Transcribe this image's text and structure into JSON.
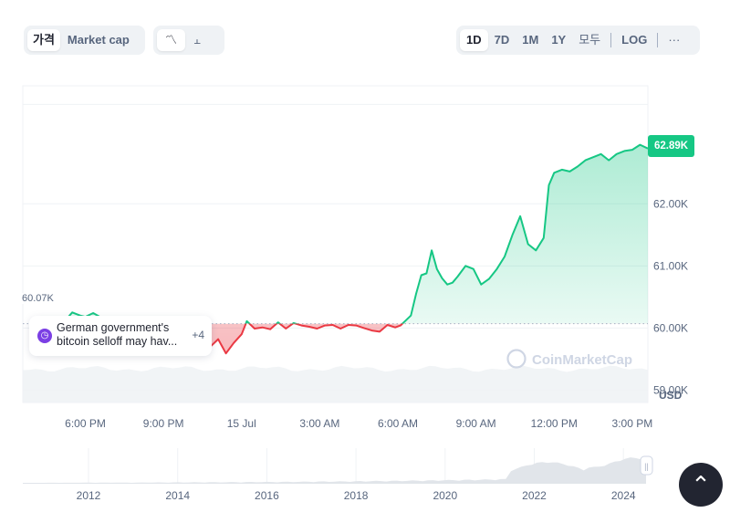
{
  "toolbar": {
    "type_tabs": [
      {
        "label": "가격",
        "active": true
      },
      {
        "label": "Market cap",
        "active": false
      }
    ],
    "chart_type_icons": [
      {
        "icon": "line-chart-icon",
        "glyph": "〽",
        "active": true
      },
      {
        "icon": "candlestick-icon",
        "glyph": "⫠",
        "active": false
      }
    ],
    "ranges": [
      {
        "label": "1D",
        "active": true
      },
      {
        "label": "7D",
        "active": false
      },
      {
        "label": "1M",
        "active": false
      },
      {
        "label": "1Y",
        "active": false
      },
      {
        "label": "모두",
        "active": false
      },
      {
        "label": "LOG",
        "active": false
      },
      {
        "label": "···",
        "active": false
      }
    ]
  },
  "chart_data": {
    "type": "line",
    "currency_label": "USD",
    "reference_value": 60070,
    "reference_label": "60.07K",
    "current_value": 62890,
    "current_label": "62.89K",
    "ylim": [
      58800,
      63900
    ],
    "y_ticks": [
      {
        "value": 59000,
        "label": "59.00K"
      },
      {
        "value": 60000,
        "label": "60.00K"
      },
      {
        "value": 61000,
        "label": "61.00K"
      },
      {
        "value": 62000,
        "label": "62.00K"
      }
    ],
    "x_ticks": [
      {
        "hour": 0,
        "label": "6:00 PM"
      },
      {
        "hour": 3,
        "label": "9:00 PM"
      },
      {
        "hour": 6,
        "label": "15 Jul"
      },
      {
        "hour": 9,
        "label": "3:00 AM"
      },
      {
        "hour": 12,
        "label": "6:00 AM"
      },
      {
        "hour": 15,
        "label": "9:00 AM"
      },
      {
        "hour": 18,
        "label": "12:00 PM"
      },
      {
        "hour": 21,
        "label": "3:00 PM"
      }
    ],
    "xlim_hours": [
      -2.4,
      21.6
    ],
    "series": [
      {
        "x_hours": [
          -0.8,
          -0.5,
          -0.2,
          0,
          0.3,
          0.6,
          0.9,
          1.3,
          1.7,
          2.0,
          2.3,
          2.6,
          3.0,
          3.3,
          3.6,
          3.9,
          4.2,
          4.5,
          4.8,
          5.1,
          5.4,
          5.7,
          6.0,
          6.2,
          6.5,
          6.8,
          7.1,
          7.4,
          7.7,
          8.0,
          8.3,
          8.6,
          8.9,
          9.2,
          9.5,
          9.8,
          10.1,
          10.4,
          10.7,
          11.0,
          11.3,
          11.6,
          11.9,
          12.1,
          12.3,
          12.5,
          12.7,
          12.9,
          13.1,
          13.3,
          13.5,
          13.7,
          13.9,
          14.1,
          14.3,
          14.6,
          14.9,
          15.2,
          15.5,
          15.8,
          16.1,
          16.4,
          16.7,
          17.0,
          17.3,
          17.6,
          17.8,
          18.0,
          18.3,
          18.6,
          18.9,
          19.2,
          19.5,
          19.8,
          20.1,
          20.4,
          20.7,
          21.0,
          21.3,
          21.6
        ],
        "values": [
          60110,
          60250,
          60200,
          60180,
          60240,
          60170,
          60090,
          60130,
          60060,
          59980,
          60000,
          60070,
          60110,
          60010,
          59830,
          59800,
          59760,
          59780,
          59700,
          59820,
          59590,
          59760,
          59900,
          60110,
          59990,
          60010,
          59980,
          60090,
          59990,
          60080,
          60040,
          60020,
          59990,
          60040,
          60050,
          59990,
          60050,
          60040,
          60000,
          59960,
          59940,
          60050,
          60010,
          60040,
          60120,
          60200,
          60550,
          60850,
          60880,
          61250,
          60950,
          60800,
          60700,
          60730,
          60830,
          61000,
          60950,
          60700,
          60790,
          60950,
          61150,
          61500,
          61800,
          61350,
          61250,
          61450,
          62300,
          62500,
          62550,
          62520,
          62600,
          62700,
          62750,
          62800,
          62700,
          62800,
          62850,
          62870,
          62950,
          62890
        ]
      }
    ],
    "volume_area": true
  },
  "watermark": {
    "brand": "CoinMarketCap"
  },
  "news": {
    "line1": "German government's",
    "line2": "bitcoin selloff may hav...",
    "more": "+4"
  },
  "navigator": {
    "x_ticks": [
      "2012",
      "2014",
      "2016",
      "2018",
      "2020",
      "2022",
      "2024"
    ],
    "handle_glyph": "||"
  },
  "scroll_top": {
    "glyph": "⌃"
  },
  "colors": {
    "up": "#16c784",
    "down": "#ea3943",
    "grid": "#eff2f5",
    "text": "#58667e"
  }
}
